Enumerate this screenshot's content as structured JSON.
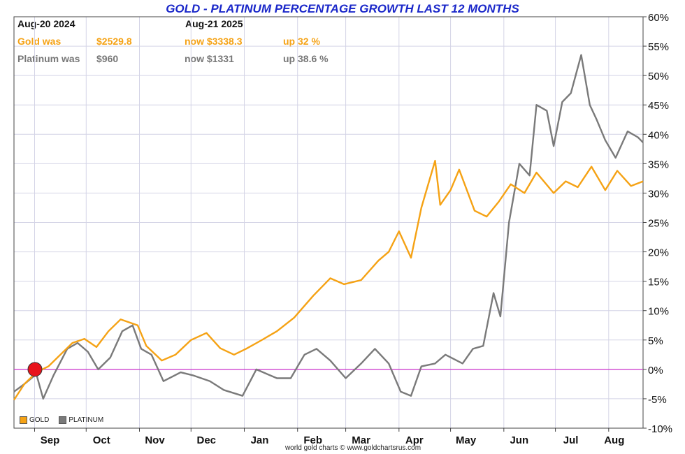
{
  "chart_data": {
    "type": "line",
    "title": "GOLD - PLATINUM PERCENTAGE GROWTH LAST 12 MONTHS",
    "info": {
      "start_date": "Aug-20  2024",
      "end_date": "Aug-21  2025",
      "gold_label": "Gold was",
      "gold_start": "$2529.8",
      "gold_now": "now $3338.3",
      "gold_up": "up 32 %",
      "plat_label": "Platinum was",
      "plat_start": "$960",
      "plat_now": "now $1331",
      "plat_up": "up 38.6 %"
    },
    "ylim": [
      -10,
      60
    ],
    "y_ticks": [
      "60%",
      "55%",
      "50%",
      "45%",
      "40%",
      "35%",
      "30%",
      "25%",
      "20%",
      "15%",
      "10%",
      "5%",
      "0%",
      "-5%",
      "-10%"
    ],
    "x_ticks": [
      "Sep",
      "Oct",
      "Nov",
      "Dec",
      "Jan",
      "Feb",
      "Mar",
      "Apr",
      "May",
      "Jun",
      "Jul",
      "Aug"
    ],
    "grid": true,
    "legend_position": "bottom-left",
    "credit": "world gold charts © www.goldchartsrus.com",
    "series": [
      {
        "name": "GOLD",
        "color": "#f5a214",
        "x": [
          "2024-08-20",
          "2024-08-26",
          "2024-09-02",
          "2024-09-09",
          "2024-09-16",
          "2024-09-23",
          "2024-09-30",
          "2024-10-07",
          "2024-10-14",
          "2024-10-21",
          "2024-10-31",
          "2024-11-05",
          "2024-11-14",
          "2024-11-22",
          "2024-12-01",
          "2024-12-10",
          "2024-12-18",
          "2024-12-26",
          "2025-01-02",
          "2025-01-10",
          "2025-01-20",
          "2025-01-30",
          "2025-02-10",
          "2025-02-20",
          "2025-02-28",
          "2025-03-10",
          "2025-03-20",
          "2025-03-26",
          "2025-04-01",
          "2025-04-08",
          "2025-04-14",
          "2025-04-22",
          "2025-04-25",
          "2025-05-01",
          "2025-05-06",
          "2025-05-15",
          "2025-05-22",
          "2025-05-29",
          "2025-06-05",
          "2025-06-13",
          "2025-06-20",
          "2025-06-30",
          "2025-07-07",
          "2025-07-14",
          "2025-07-22",
          "2025-07-30",
          "2025-08-06",
          "2025-08-14",
          "2025-08-21"
        ],
        "values": [
          -5.2,
          -2.5,
          -0.5,
          0.5,
          2.5,
          4.5,
          5.2,
          3.8,
          6.5,
          8.5,
          7.5,
          4.0,
          1.5,
          2.5,
          5.0,
          6.2,
          3.6,
          2.5,
          3.5,
          4.8,
          6.5,
          8.8,
          12.5,
          15.5,
          14.5,
          15.2,
          18.5,
          20.0,
          23.5,
          19.0,
          27.5,
          35.5,
          28.0,
          30.5,
          34.0,
          27.0,
          26.0,
          28.5,
          31.5,
          30.0,
          33.5,
          30.0,
          32.0,
          31.0,
          34.5,
          30.5,
          33.8,
          31.2,
          32.0
        ]
      },
      {
        "name": "PLATINUM",
        "color": "#7a7a7a",
        "x": [
          "2024-08-20",
          "2024-08-26",
          "2024-09-02",
          "2024-09-06",
          "2024-09-12",
          "2024-09-20",
          "2024-09-26",
          "2024-10-02",
          "2024-10-08",
          "2024-10-15",
          "2024-10-22",
          "2024-10-28",
          "2024-11-02",
          "2024-11-08",
          "2024-11-15",
          "2024-11-25",
          "2024-12-02",
          "2024-12-12",
          "2024-12-20",
          "2024-12-31",
          "2025-01-08",
          "2025-01-20",
          "2025-01-28",
          "2025-02-05",
          "2025-02-12",
          "2025-02-20",
          "2025-03-01",
          "2025-03-10",
          "2025-03-18",
          "2025-03-26",
          "2025-04-02",
          "2025-04-08",
          "2025-04-14",
          "2025-04-22",
          "2025-04-28",
          "2025-05-08",
          "2025-05-14",
          "2025-05-20",
          "2025-05-26",
          "2025-05-30",
          "2025-06-04",
          "2025-06-10",
          "2025-06-16",
          "2025-06-20",
          "2025-06-26",
          "2025-06-30",
          "2025-07-05",
          "2025-07-10",
          "2025-07-16",
          "2025-07-21",
          "2025-07-25",
          "2025-07-30",
          "2025-08-05",
          "2025-08-12",
          "2025-08-18",
          "2025-08-21"
        ],
        "values": [
          -3.8,
          -2.5,
          -0.8,
          -5.0,
          -1.0,
          3.5,
          4.5,
          3.0,
          0.0,
          2.0,
          6.5,
          7.5,
          3.5,
          2.5,
          -2.0,
          -0.5,
          -1.0,
          -2.0,
          -3.5,
          -4.5,
          0.0,
          -1.5,
          -1.5,
          2.5,
          3.5,
          1.5,
          -1.5,
          1.0,
          3.5,
          1.0,
          -3.8,
          -4.5,
          0.5,
          1.0,
          2.5,
          1.0,
          3.5,
          4.0,
          13.0,
          9.0,
          25.0,
          35.0,
          33.0,
          45.0,
          44.0,
          38.0,
          45.5,
          47.0,
          53.5,
          45.0,
          42.5,
          39.0,
          36.0,
          40.5,
          39.5,
          38.6
        ]
      }
    ]
  }
}
